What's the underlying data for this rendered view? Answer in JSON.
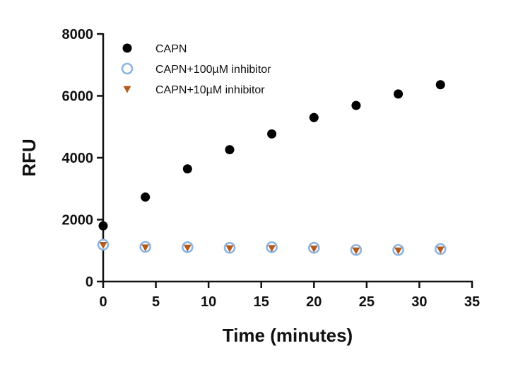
{
  "chart_data": {
    "type": "scatter",
    "title": "",
    "xlabel": "Time (minutes)",
    "ylabel": "RFU",
    "xlim": [
      0,
      35
    ],
    "ylim": [
      0,
      8000
    ],
    "xticks": [
      0,
      5,
      10,
      15,
      20,
      25,
      30,
      35
    ],
    "yticks": [
      0,
      2000,
      4000,
      6000,
      8000
    ],
    "grid": false,
    "legend_position": "top-left",
    "series": [
      {
        "name": "CAPN",
        "marker": "filled-circle",
        "color": "#000000",
        "x": [
          0,
          4,
          8,
          12,
          16,
          20,
          24,
          28,
          32
        ],
        "y": [
          1800,
          2730,
          3640,
          4260,
          4770,
          5300,
          5690,
          6060,
          6360
        ]
      },
      {
        "name": "CAPN+100µM inhibitor",
        "marker": "open-circle",
        "color": "#8cb4e0",
        "x": [
          0,
          4,
          8,
          12,
          16,
          20,
          24,
          28,
          32
        ],
        "y": [
          1190,
          1120,
          1110,
          1090,
          1110,
          1090,
          1020,
          1020,
          1050
        ]
      },
      {
        "name": "CAPN+10µM inhibitor",
        "marker": "filled-triangle-down",
        "color": "#b35a1f",
        "x": [
          0,
          4,
          8,
          12,
          16,
          20,
          24,
          28,
          32
        ],
        "y": [
          1180,
          1100,
          1090,
          1070,
          1080,
          1060,
          1000,
          1000,
          1030
        ]
      }
    ]
  }
}
